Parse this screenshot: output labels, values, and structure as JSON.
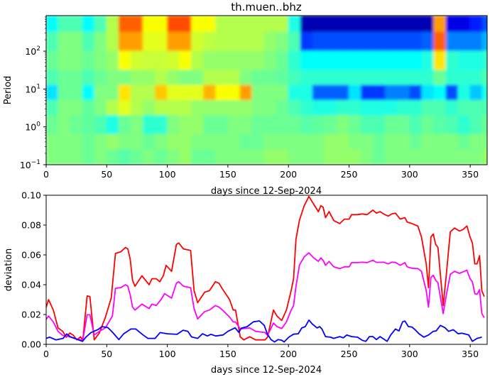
{
  "chart_data": [
    {
      "type": "heatmap",
      "title": "th.muen..bhz",
      "xlabel": "days since 12-Sep-2024",
      "ylabel": "Period",
      "xlim": [
        0,
        364
      ],
      "ylim": [
        0.1,
        870
      ],
      "yscale": "log",
      "colormap": "jet",
      "xticks": [
        0,
        50,
        100,
        150,
        200,
        250,
        300,
        350
      ],
      "yticks": [
        {
          "value": 0.1,
          "base": "10",
          "exp": "−1"
        },
        {
          "value": 1,
          "base": "10",
          "exp": "0"
        },
        {
          "value": 10,
          "base": "10",
          "exp": "1"
        },
        {
          "value": 100,
          "base": "10",
          "exp": "2"
        }
      ],
      "column_width_days": 10,
      "period_edges": [
        870,
        316,
        100,
        31.6,
        12.6,
        5,
        2,
        0.63,
        0.25,
        0.1
      ],
      "rows": [
        [
          0.38,
          0.45,
          0.45,
          0.38,
          0.45,
          0.55,
          0.78,
          0.78,
          0.62,
          0.62,
          0.8,
          0.8,
          0.62,
          0.62,
          0.55,
          0.55,
          0.55,
          0.55,
          0.55,
          0.55,
          0.4,
          0.05,
          0.05,
          0.05,
          0.05,
          0.05,
          0.05,
          0.05,
          0.05,
          0.05,
          0.05,
          0.05,
          0.72,
          0.1,
          0.1,
          0.15,
          0.2
        ],
        [
          0.45,
          0.5,
          0.5,
          0.45,
          0.5,
          0.55,
          0.72,
          0.72,
          0.6,
          0.6,
          0.72,
          0.72,
          0.58,
          0.56,
          0.55,
          0.55,
          0.55,
          0.55,
          0.52,
          0.5,
          0.45,
          0.18,
          0.2,
          0.2,
          0.2,
          0.2,
          0.2,
          0.2,
          0.2,
          0.2,
          0.2,
          0.22,
          0.78,
          0.25,
          0.25,
          0.25,
          0.3
        ],
        [
          0.48,
          0.5,
          0.5,
          0.48,
          0.5,
          0.52,
          0.62,
          0.58,
          0.57,
          0.57,
          0.58,
          0.62,
          0.55,
          0.52,
          0.52,
          0.52,
          0.52,
          0.52,
          0.5,
          0.48,
          0.42,
          0.38,
          0.38,
          0.38,
          0.38,
          0.38,
          0.38,
          0.38,
          0.38,
          0.38,
          0.38,
          0.4,
          0.65,
          0.42,
          0.4,
          0.4,
          0.42
        ],
        [
          0.45,
          0.48,
          0.48,
          0.45,
          0.48,
          0.5,
          0.5,
          0.52,
          0.52,
          0.55,
          0.52,
          0.5,
          0.5,
          0.55,
          0.55,
          0.55,
          0.5,
          0.48,
          0.48,
          0.47,
          0.44,
          0.42,
          0.42,
          0.42,
          0.42,
          0.42,
          0.42,
          0.42,
          0.42,
          0.42,
          0.42,
          0.42,
          0.48,
          0.42,
          0.42,
          0.42,
          0.45
        ],
        [
          0.35,
          0.48,
          0.48,
          0.38,
          0.5,
          0.5,
          0.65,
          0.55,
          0.55,
          0.68,
          0.6,
          0.6,
          0.6,
          0.7,
          0.62,
          0.62,
          0.72,
          0.5,
          0.5,
          0.5,
          0.4,
          0.4,
          0.22,
          0.22,
          0.22,
          0.35,
          0.18,
          0.18,
          0.25,
          0.25,
          0.2,
          0.35,
          0.38,
          0.2,
          0.4,
          0.32,
          0.4
        ],
        [
          0.45,
          0.5,
          0.5,
          0.47,
          0.5,
          0.55,
          0.6,
          0.55,
          0.52,
          0.55,
          0.55,
          0.55,
          0.52,
          0.52,
          0.52,
          0.52,
          0.52,
          0.5,
          0.5,
          0.48,
          0.45,
          0.42,
          0.4,
          0.4,
          0.42,
          0.42,
          0.4,
          0.4,
          0.4,
          0.42,
          0.42,
          0.45,
          0.45,
          0.42,
          0.45,
          0.45,
          0.45
        ],
        [
          0.48,
          0.5,
          0.48,
          0.47,
          0.45,
          0.4,
          0.48,
          0.5,
          0.42,
          0.42,
          0.5,
          0.52,
          0.52,
          0.48,
          0.48,
          0.5,
          0.5,
          0.48,
          0.48,
          0.48,
          0.48,
          0.46,
          0.47,
          0.48,
          0.5,
          0.48,
          0.45,
          0.45,
          0.48,
          0.48,
          0.45,
          0.48,
          0.46,
          0.45,
          0.42,
          0.45,
          0.48
        ],
        [
          0.5,
          0.5,
          0.5,
          0.48,
          0.5,
          0.52,
          0.5,
          0.5,
          0.48,
          0.5,
          0.52,
          0.52,
          0.5,
          0.5,
          0.5,
          0.5,
          0.48,
          0.48,
          0.5,
          0.5,
          0.5,
          0.5,
          0.5,
          0.52,
          0.52,
          0.5,
          0.5,
          0.48,
          0.5,
          0.5,
          0.48,
          0.5,
          0.5,
          0.5,
          0.48,
          0.5,
          0.5
        ],
        [
          0.5,
          0.5,
          0.5,
          0.48,
          0.5,
          0.48,
          0.46,
          0.48,
          0.5,
          0.48,
          0.5,
          0.52,
          0.48,
          0.48,
          0.5,
          0.5,
          0.5,
          0.5,
          0.52,
          0.52,
          0.5,
          0.5,
          0.5,
          0.52,
          0.52,
          0.52,
          0.5,
          0.48,
          0.5,
          0.5,
          0.5,
          0.5,
          0.5,
          0.5,
          0.5,
          0.5,
          0.52
        ]
      ]
    },
    {
      "type": "line",
      "xlabel": "days since 12-Sep-2024",
      "ylabel": "deviation",
      "xlim": [
        0,
        364
      ],
      "ylim": [
        0,
        0.1
      ],
      "xticks": [
        0,
        50,
        100,
        150,
        200,
        250,
        300,
        350
      ],
      "yticks": [
        "0.00",
        "0.02",
        "0.04",
        "0.06",
        "0.08",
        "0.10"
      ],
      "grid": false,
      "series": [
        {
          "color": "#ff0000",
          "x": [
            0,
            2,
            5.9,
            9.8,
            13.7,
            16.6,
            19.5,
            22.5,
            25.4,
            28.3,
            30.3,
            33.8,
            36.1,
            39.7,
            43.9,
            48.8,
            51.8,
            53.7,
            57.2,
            61.5,
            65.5,
            67.4,
            69.4,
            71.3,
            73.3,
            79.1,
            82,
            85,
            87.3,
            90.8,
            93.8,
            96.7,
            99,
            103.5,
            107.5,
            109.4,
            113.3,
            119.2,
            122.1,
            125,
            130.9,
            134.8,
            139.7,
            142.6,
            145.6,
            151.4,
            154.4,
            156.3,
            160.2,
            163.2,
            168,
            172.9,
            180.7,
            182.7,
            187.6,
            190.5,
            194.4,
            198.3,
            202.2,
            204.2,
            206.2,
            209.1,
            213,
            216.9,
            220.8,
            224.7,
            226.7,
            228.6,
            230.6,
            233.5,
            237.4,
            242.3,
            246.2,
            250.1,
            252.1,
            257,
            260.9,
            264.8,
            269.7,
            272.6,
            275.6,
            278.5,
            282.4,
            285.3,
            288.3,
            292.2,
            296.1,
            298,
            301.9,
            306.8,
            309.8,
            313.7,
            315.6,
            317.6,
            319.5,
            321.5,
            323.4,
            327.7,
            330.3,
            333.6,
            337.1,
            341,
            344,
            347.3,
            349.9,
            351.8,
            353.8,
            355.7,
            357.7,
            359.6,
            361.6
          ],
          "y": [
            0.0248,
            0.03,
            0.023,
            0.011,
            0.0087,
            0.0048,
            0.0076,
            0.006,
            0.003,
            0.005,
            0.003,
            0.0325,
            0.032,
            0.003,
            0.0076,
            0.018,
            0.026,
            0.031,
            0.061,
            0.062,
            0.065,
            0.064,
            0.057,
            0.043,
            0.039,
            0.046,
            0.043,
            0.04,
            0.044,
            0.044,
            0.042,
            0.046,
            0.053,
            0.049,
            0.067,
            0.068,
            0.064,
            0.063,
            0.036,
            0.028,
            0.035,
            0.036,
            0.042,
            0.041,
            0.037,
            0.03,
            0.023,
            0.023,
            0.005,
            0.003,
            0.0051,
            0.003,
            0.003,
            0.0048,
            0.023,
            0.019,
            0.016,
            0.023,
            0.036,
            0.044,
            0.0706,
            0.0833,
            0.093,
            0.0992,
            0.094,
            0.089,
            0.093,
            0.092,
            0.085,
            0.089,
            0.083,
            0.081,
            0.084,
            0.084,
            0.087,
            0.087,
            0.0875,
            0.087,
            0.09,
            0.088,
            0.089,
            0.0875,
            0.086,
            0.0875,
            0.088,
            0.084,
            0.085,
            0.082,
            0.081,
            0.0794,
            0.072,
            0.054,
            0.038,
            0.072,
            0.074,
            0.067,
            0.065,
            0.026,
            0.0468,
            0.0755,
            0.078,
            0.076,
            0.077,
            0.0794,
            0.072,
            0.068,
            0.054,
            0.054,
            0.0595,
            0.036,
            0.032
          ]
        },
        {
          "color": "#ff00ff",
          "x": [
            0,
            2,
            5.9,
            9.8,
            13.7,
            19.5,
            28.3,
            30.3,
            33.8,
            36.1,
            39.7,
            43.9,
            48.8,
            51.8,
            54.7,
            57.2,
            61.5,
            65.5,
            67.4,
            69.4,
            71.3,
            73.3,
            79.1,
            85,
            87.3,
            90.8,
            94.8,
            97.7,
            103.5,
            107.5,
            109.4,
            113.3,
            119.2,
            122.1,
            125,
            130.9,
            134.8,
            139.7,
            142.6,
            145.6,
            151.4,
            154.4,
            156.3,
            160.2,
            168,
            172.9,
            180.7,
            182.7,
            187.6,
            190.5,
            194.4,
            198.3,
            202.2,
            204.2,
            206.2,
            209.1,
            213,
            216.9,
            220.8,
            224.7,
            226.7,
            228.6,
            230.6,
            233.5,
            237.4,
            242.3,
            246.2,
            250.1,
            252.1,
            257,
            260.9,
            264.8,
            269.7,
            272.6,
            275.6,
            278.5,
            282.4,
            285.3,
            288.3,
            292.2,
            296.1,
            298,
            301.9,
            306.8,
            309.8,
            313.7,
            315.6,
            317.6,
            319.5,
            321.5,
            323.4,
            327.7,
            330.3,
            333.6,
            337.1,
            341,
            344,
            347.3,
            349.9,
            351.8,
            353.8,
            355.7,
            357.7,
            359.6,
            361.6
          ],
          "y": [
            0.0167,
            0.019,
            0.015,
            0.0087,
            0.006,
            0.005,
            0.003,
            0.003,
            0.0198,
            0.0198,
            0.0063,
            0.0087,
            0.011,
            0.015,
            0.019,
            0.0376,
            0.038,
            0.04,
            0.039,
            0.033,
            0.025,
            0.023,
            0.027,
            0.024,
            0.027,
            0.026,
            0.03,
            0.034,
            0.031,
            0.041,
            0.042,
            0.039,
            0.038,
            0.024,
            0.017,
            0.022,
            0.023,
            0.026,
            0.025,
            0.023,
            0.0183,
            0.015,
            0.015,
            0.0103,
            0.011,
            0.0087,
            0.0079,
            0.006,
            0.0143,
            0.0119,
            0.0106,
            0.015,
            0.023,
            0.026,
            0.039,
            0.0532,
            0.0587,
            0.0614,
            0.058,
            0.0556,
            0.058,
            0.0564,
            0.053,
            0.0556,
            0.052,
            0.0508,
            0.052,
            0.052,
            0.0548,
            0.0548,
            0.0551,
            0.0548,
            0.0564,
            0.055,
            0.055,
            0.0551,
            0.054,
            0.0551,
            0.055,
            0.053,
            0.0548,
            0.052,
            0.051,
            0.0508,
            0.049,
            0.036,
            0.025,
            0.0448,
            0.0464,
            0.043,
            0.0413,
            0.0206,
            0.033,
            0.047,
            0.049,
            0.0476,
            0.0486,
            0.0497,
            0.044,
            0.042,
            0.034,
            0.0335,
            0.0367,
            0.0206,
            0.0179
          ]
        },
        {
          "color": "#0000ff",
          "x": [
            0,
            3,
            8,
            14,
            17,
            20,
            25,
            30,
            33,
            37,
            43,
            46,
            51,
            55,
            60,
            64,
            70,
            74,
            80,
            84,
            90,
            94,
            100,
            108,
            113,
            117,
            120,
            125,
            129,
            133,
            136,
            140,
            146,
            150,
            156,
            159,
            161,
            166,
            171,
            176,
            180,
            182.7,
            185.6,
            188.5,
            191.5,
            194.4,
            196.4,
            200.3,
            204.2,
            208.1,
            211,
            213.9,
            216.9,
            219.8,
            223.7,
            225.7,
            227.6,
            230.6,
            234.5,
            237.4,
            242.3,
            245.3,
            248.2,
            252.1,
            257,
            260.9,
            263.8,
            266.8,
            269.7,
            272.6,
            275.6,
            278.5,
            281.4,
            284.4,
            288.3,
            291.2,
            294.2,
            296.1,
            299,
            301.9,
            304.9,
            307.8,
            311.7,
            315.6,
            319.5,
            321.9,
            325.4,
            329.3,
            332.2,
            336.1,
            340,
            343,
            348.8,
            351.8,
            355.7,
            359.6
          ],
          "y": [
            0.004,
            0.0048,
            0.003,
            0.004,
            0.007,
            0.005,
            0.0035,
            0.002,
            0.005,
            0.0079,
            0.01,
            0.0119,
            0.0112,
            0.0079,
            0.0032,
            0.0071,
            0.0103,
            0.0103,
            0.0063,
            0.004,
            0.004,
            0.0079,
            0.0071,
            0.0067,
            0.0095,
            0.0087,
            0.005,
            0.004,
            0.0071,
            0.0056,
            0.0067,
            0.0056,
            0.0063,
            0.0087,
            0.0111,
            0.008,
            0.0108,
            0.0119,
            0.0151,
            0.0157,
            0.0127,
            0.0067,
            0.0032,
            0.0016,
            0.0032,
            0.0027,
            0.0016,
            0.0048,
            0.0068,
            0.0071,
            0.011,
            0.0119,
            0.0163,
            0.0135,
            0.011,
            0.0119,
            0.0103,
            0.0052,
            0.0048,
            0.004,
            0.0052,
            0.0044,
            0.0063,
            0.0052,
            0.0048,
            0.0027,
            0.002,
            0.0052,
            0.0052,
            0.0032,
            0.0052,
            0.0036,
            0.002,
            0.0063,
            0.0103,
            0.009,
            0.0151,
            0.0156,
            0.0119,
            0.0116,
            0.0095,
            0.0071,
            0.0048,
            0.0063,
            0.0087,
            0.009,
            0.0127,
            0.0111,
            0.0087,
            0.0098,
            0.0071,
            0.0075,
            0.0063,
            0.002,
            0.004,
            0.0048
          ]
        }
      ]
    }
  ]
}
